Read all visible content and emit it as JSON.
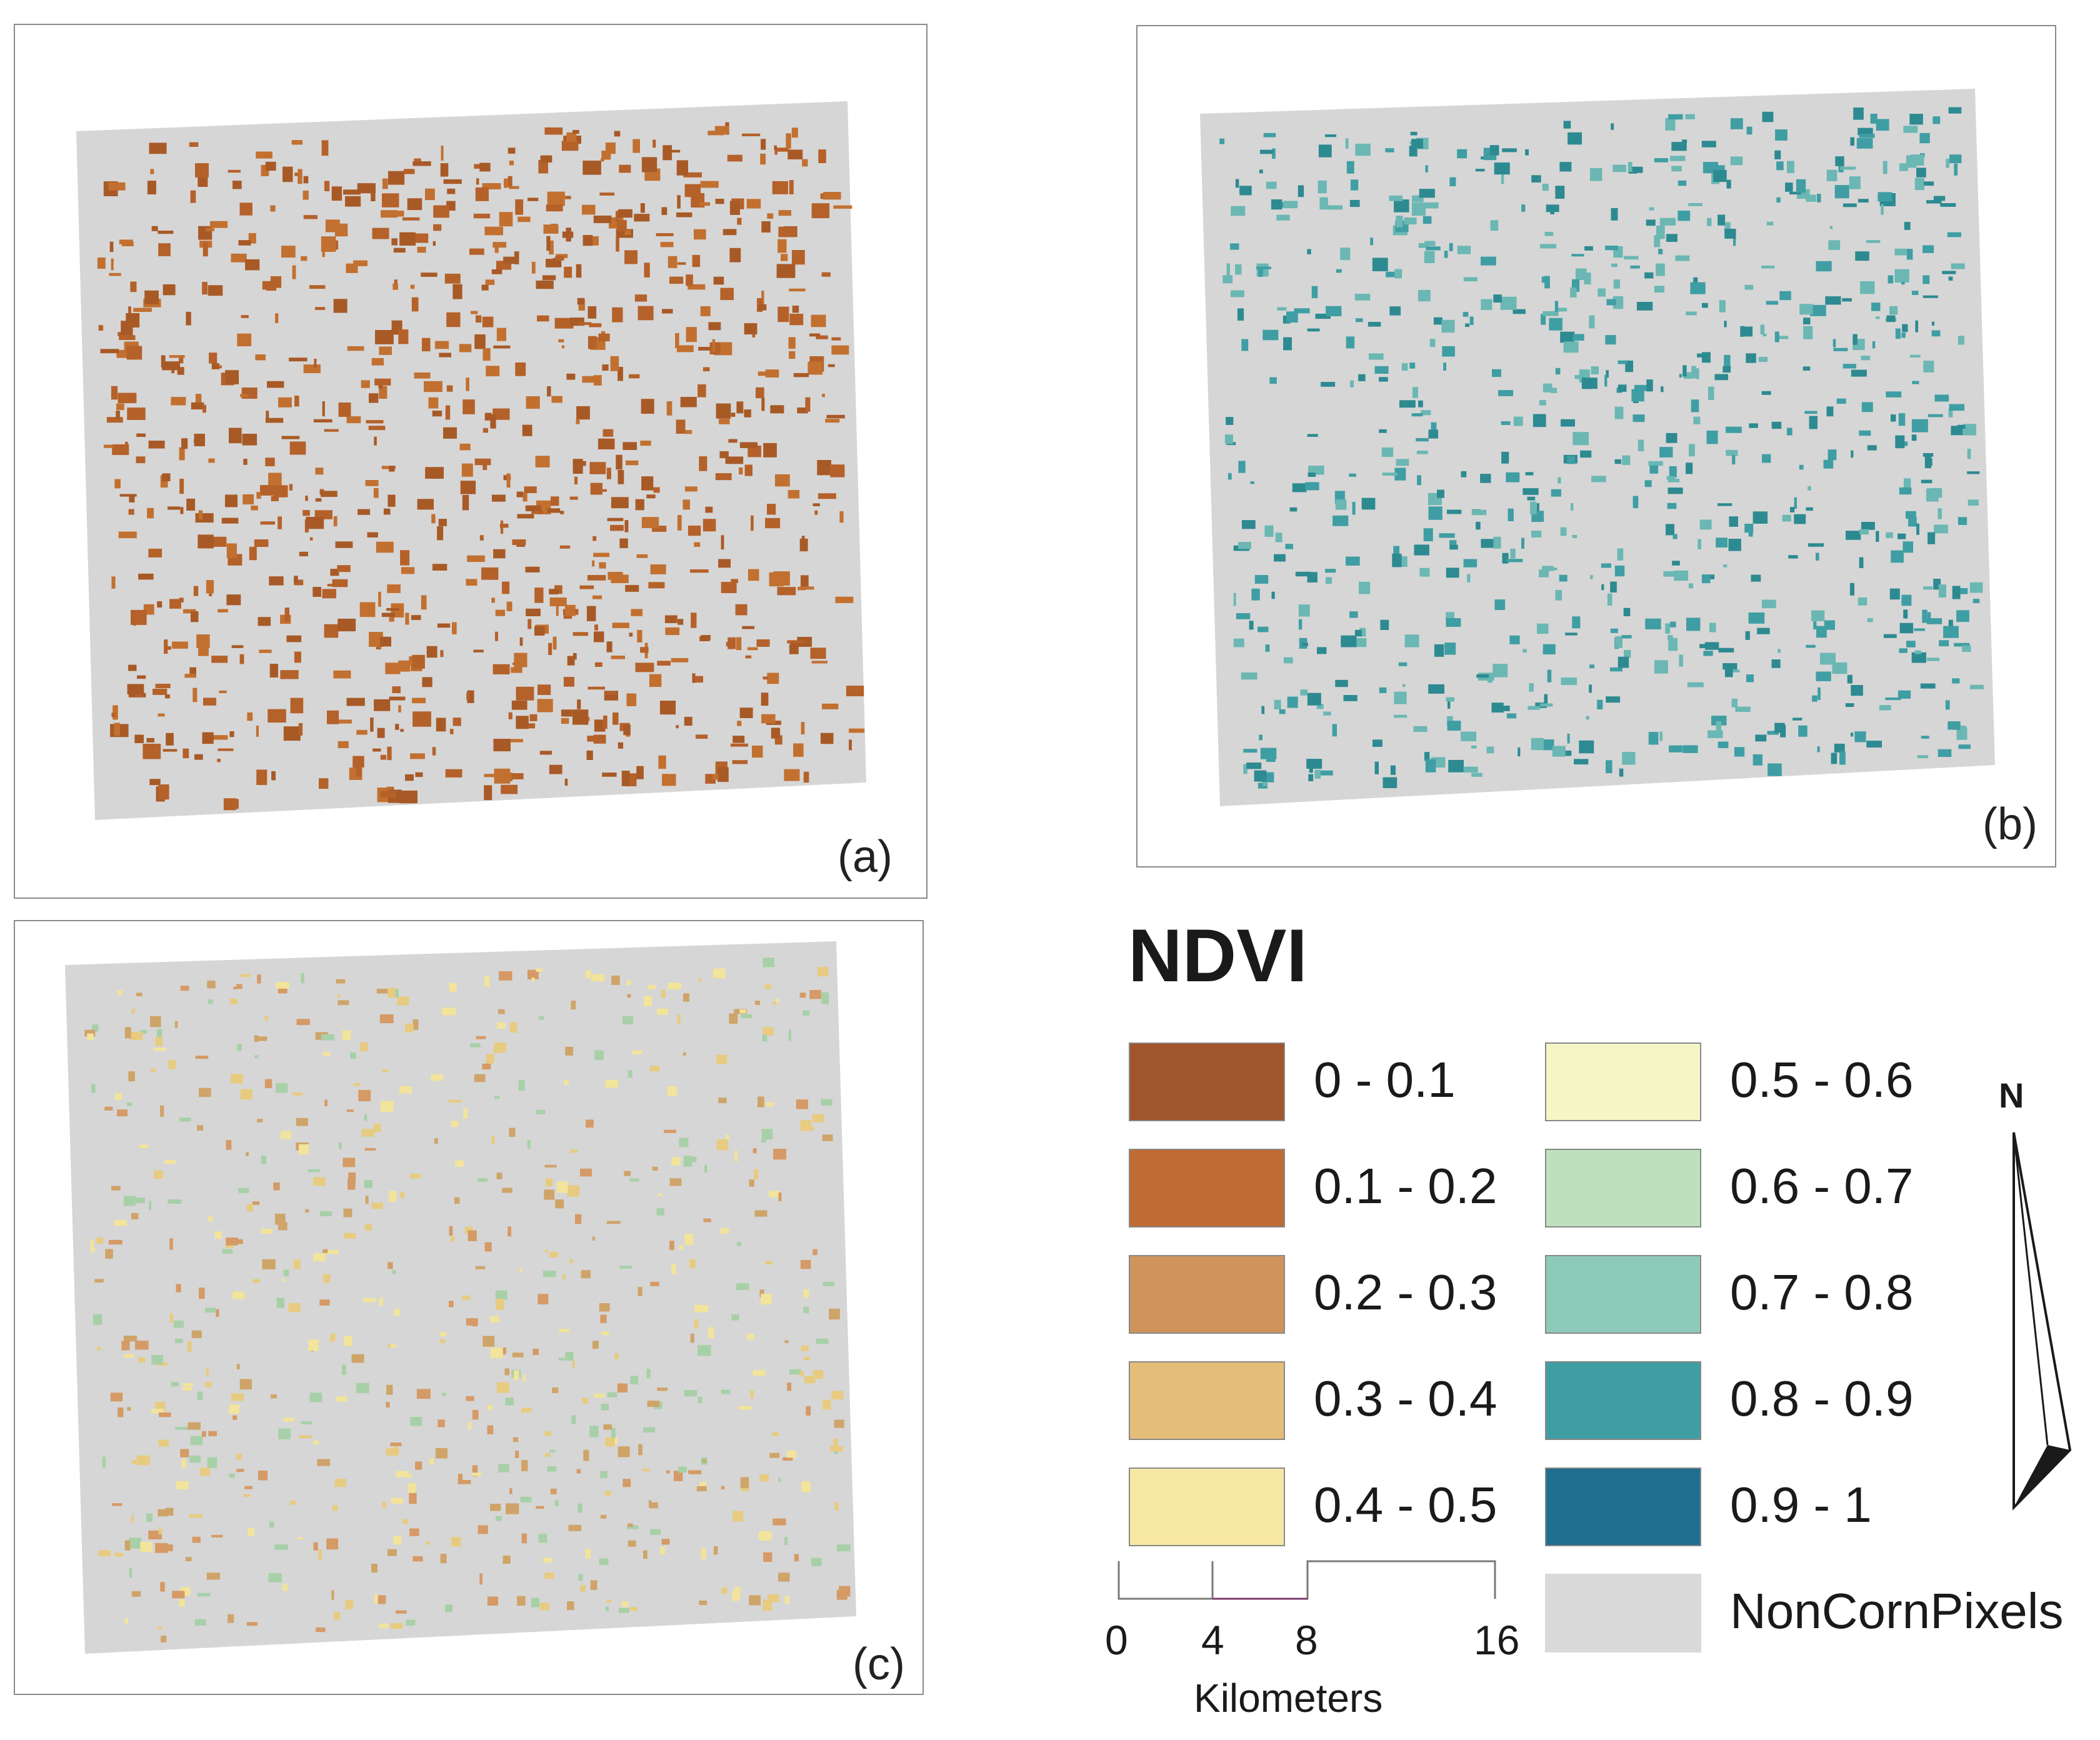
{
  "panels": [
    {
      "id": "a",
      "label": "(a)",
      "palette": [
        "#b5612a",
        "#c27030",
        "#a85a26"
      ]
    },
    {
      "id": "b",
      "label": "(b)",
      "palette": [
        "#3f9ea3",
        "#2d8a91",
        "#6bb7b3"
      ]
    },
    {
      "id": "c",
      "label": "(c)",
      "palette": [
        "#f2e49a",
        "#e7cb80",
        "#cfa469",
        "#a8d0a8",
        "#d69a66"
      ]
    }
  ],
  "legend": {
    "title": "NDVI",
    "items": [
      {
        "label": "0 - 0.1",
        "color": "#a0552b"
      },
      {
        "label": "0.1 - 0.2",
        "color": "#c06a34"
      },
      {
        "label": "0.2 - 0.3",
        "color": "#d0935c"
      },
      {
        "label": "0.3 - 0.4",
        "color": "#e4bd79"
      },
      {
        "label": "0.4 - 0.5",
        "color": "#f7e7a4"
      },
      {
        "label": "0.5 - 0.6",
        "color": "#f6f5c5"
      },
      {
        "label": "0.6 - 0.7",
        "color": "#bfe0bd"
      },
      {
        "label": "0.7 - 0.8",
        "color": "#8ecaba"
      },
      {
        "label": "0.8 - 0.9",
        "color": "#3f9ea3"
      },
      {
        "label": "0.9 - 1",
        "color": "#1f6d8f"
      },
      {
        "label": "NonCornPixels",
        "color": "#d9d9d9"
      }
    ]
  },
  "scale_bar": {
    "ticks": [
      "0",
      "4",
      "8",
      "16"
    ],
    "unit": "Kilometers"
  },
  "north_arrow": {
    "label": "N"
  },
  "colors": {
    "map_background": "#d6d6d6",
    "frame": "#8a8a8a"
  }
}
